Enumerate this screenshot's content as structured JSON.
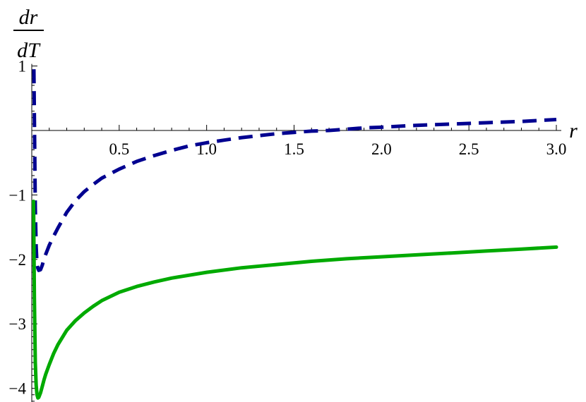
{
  "chart_data": {
    "type": "line",
    "xlabel": "r",
    "ylabel_numerator": "dr",
    "ylabel_denominator": "dT",
    "xlim": [
      0,
      3.0
    ],
    "ylim": [
      -4.2,
      1.0
    ],
    "x_ticks": [
      0.5,
      1.0,
      1.5,
      2.0,
      2.5,
      3.0
    ],
    "x_tick_labels": [
      "0.5",
      "1.0",
      "1.5",
      "2.0",
      "2.5",
      "3.0"
    ],
    "y_ticks": [
      1,
      -1,
      -2,
      -3,
      -4
    ],
    "y_tick_labels": [
      "1",
      "−1",
      "−2",
      "−3",
      "−4"
    ],
    "grid": false,
    "series": [
      {
        "style": "dashed",
        "color": "#000090",
        "x": [
          0.012,
          0.02,
          0.025,
          0.03,
          0.035,
          0.04,
          0.05,
          0.06,
          0.07,
          0.08,
          0.1,
          0.125,
          0.15,
          0.2,
          0.25,
          0.3,
          0.35,
          0.4,
          0.5,
          0.6,
          0.7,
          0.8,
          0.9,
          1.0,
          1.1,
          1.2,
          1.3,
          1.4,
          1.5,
          1.6,
          1.7,
          1.8,
          1.9,
          2.0,
          2.2,
          2.4,
          2.6,
          2.8,
          3.0
        ],
        "y": [
          0.95,
          -1.2,
          -1.8,
          -2.08,
          -2.14,
          -2.17,
          -2.16,
          -2.09,
          -1.99,
          -1.92,
          -1.78,
          -1.64,
          -1.51,
          -1.27,
          -1.09,
          -0.95,
          -0.84,
          -0.74,
          -0.6,
          -0.48,
          -0.39,
          -0.31,
          -0.24,
          -0.19,
          -0.15,
          -0.11,
          -0.08,
          -0.05,
          -0.03,
          -0.01,
          0.0,
          0.02,
          0.04,
          0.05,
          0.08,
          0.1,
          0.12,
          0.14,
          0.17
        ]
      },
      {
        "style": "solid",
        "color": "#00aa00",
        "x": [
          0.01,
          0.015,
          0.02,
          0.025,
          0.03,
          0.035,
          0.04,
          0.05,
          0.06,
          0.07,
          0.08,
          0.1,
          0.125,
          0.15,
          0.2,
          0.25,
          0.3,
          0.35,
          0.4,
          0.5,
          0.6,
          0.7,
          0.8,
          1.0,
          1.2,
          1.4,
          1.6,
          1.8,
          2.0,
          2.2,
          2.4,
          2.6,
          2.8,
          3.0
        ],
        "y": [
          -1.1,
          -2.6,
          -3.6,
          -3.95,
          -4.1,
          -4.15,
          -4.14,
          -4.07,
          -3.97,
          -3.87,
          -3.78,
          -3.63,
          -3.46,
          -3.32,
          -3.1,
          -2.95,
          -2.83,
          -2.73,
          -2.64,
          -2.51,
          -2.42,
          -2.35,
          -2.29,
          -2.2,
          -2.13,
          -2.08,
          -2.03,
          -1.99,
          -1.96,
          -1.93,
          -1.9,
          -1.87,
          -1.84,
          -1.81
        ]
      }
    ]
  }
}
